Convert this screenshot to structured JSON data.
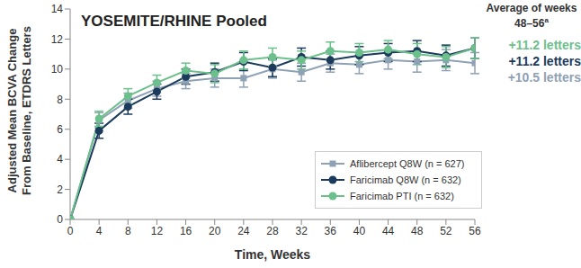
{
  "chart_data": {
    "type": "line",
    "title": "YOSEMITE/RHINE Pooled",
    "x_label": "Time, Weeks",
    "y_label": [
      "Adjusted Mean BCVA Change",
      "From Baseline, ETDRS Letters"
    ],
    "x": [
      0,
      4,
      8,
      12,
      16,
      20,
      24,
      28,
      32,
      36,
      40,
      44,
      48,
      52,
      56
    ],
    "xlim": [
      0,
      56
    ],
    "xticks": [
      0,
      4,
      8,
      12,
      16,
      20,
      24,
      28,
      32,
      36,
      40,
      44,
      48,
      52,
      56
    ],
    "ylim": [
      0,
      14
    ],
    "yticks": [
      0,
      2,
      4,
      6,
      8,
      10,
      12,
      14
    ],
    "grid": false,
    "legend": "lower right",
    "annotation_title": "Average of weeks 48–56",
    "annotation_footnote": "a",
    "series": [
      {
        "name": "Aflibercept Q8W (n = 627)",
        "color": "#8fa1b4",
        "marker": "square",
        "values": [
          0,
          6.6,
          7.9,
          8.7,
          9.2,
          9.4,
          9.4,
          10.0,
          9.8,
          10.4,
          10.3,
          10.6,
          10.5,
          10.6,
          10.4
        ],
        "errors": [
          0,
          0.5,
          0.5,
          0.5,
          0.5,
          0.6,
          0.6,
          0.6,
          0.6,
          0.6,
          0.6,
          0.6,
          0.7,
          0.7,
          0.7
        ],
        "average": 10.5,
        "average_label": "+10.5 letters"
      },
      {
        "name": "Faricimab Q8W (n = 632)",
        "color": "#1b3a5c",
        "marker": "circle",
        "values": [
          0,
          5.9,
          7.5,
          8.5,
          9.5,
          9.8,
          10.5,
          10.1,
          10.8,
          10.6,
          10.9,
          11.1,
          11.2,
          10.9,
          11.4
        ],
        "errors": [
          0,
          0.5,
          0.5,
          0.5,
          0.5,
          0.6,
          0.6,
          0.6,
          0.6,
          0.6,
          0.6,
          0.6,
          0.7,
          0.7,
          0.7
        ],
        "average": 11.2,
        "average_label": "+11.2 letters"
      },
      {
        "name": "Faricimab PTI (n = 632)",
        "color": "#6cc08b",
        "marker": "circle",
        "values": [
          0,
          6.7,
          8.2,
          9.1,
          9.9,
          9.7,
          10.6,
          10.8,
          10.6,
          11.2,
          11.1,
          11.3,
          11.0,
          10.8,
          11.4
        ],
        "errors": [
          0,
          0.5,
          0.5,
          0.5,
          0.5,
          0.6,
          0.6,
          0.6,
          0.6,
          0.6,
          0.6,
          0.6,
          0.7,
          0.7,
          0.7
        ],
        "average": 11.2,
        "average_label": "+11.2 letters"
      }
    ]
  }
}
